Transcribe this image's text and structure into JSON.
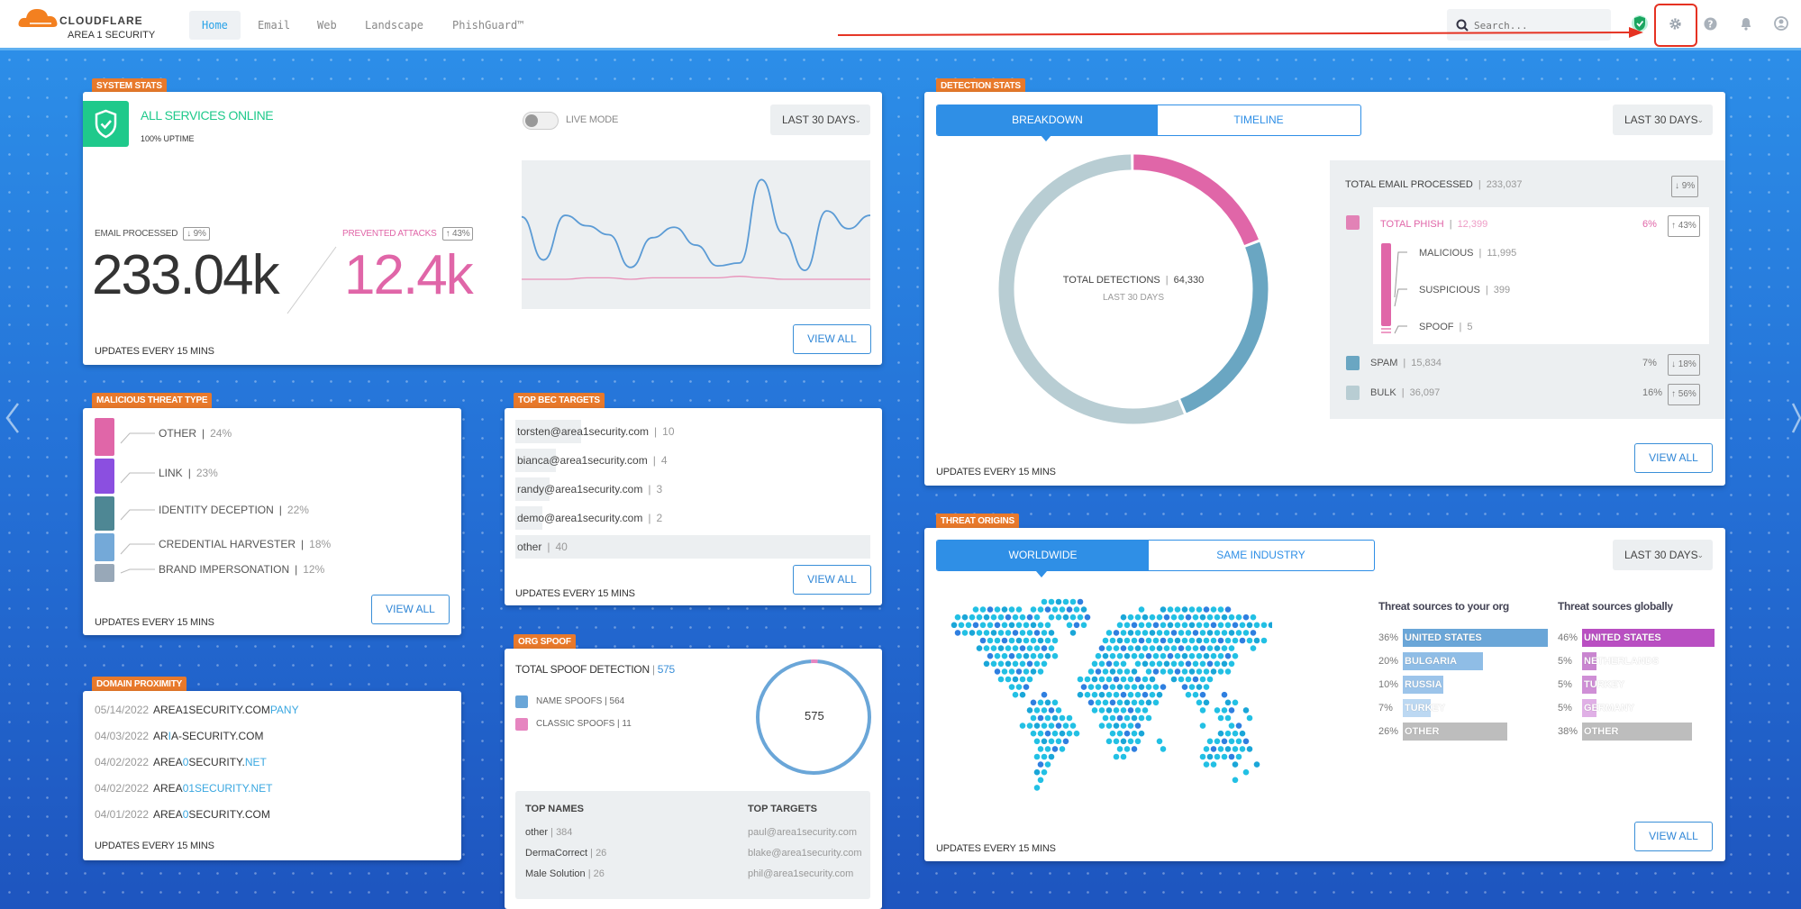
{
  "header": {
    "brand": "CLOUDFLARE",
    "product": "AREA 1 SECURITY",
    "tabs": [
      {
        "label": "Home",
        "active": true
      },
      {
        "label": "Email"
      },
      {
        "label": "Web"
      },
      {
        "label": "Landscape"
      },
      {
        "label": "PhishGuard™"
      }
    ],
    "search_placeholder": "Search...",
    "icons": [
      "shield-check-icon",
      "gear-icon",
      "help-icon",
      "bell-icon",
      "user-icon"
    ]
  },
  "colors": {
    "accent": "#2f8fe6",
    "tag": "#e8792b",
    "online": "#1fc98b",
    "phish": "#e066a8",
    "spam": "#6aa6c2",
    "bulk": "#b8cdd3",
    "annotation": "#e53222"
  },
  "system_stats": {
    "tag": "SYSTEM STATS",
    "status": "ALL SERVICES ONLINE",
    "uptime": "100% UPTIME",
    "live_mode_label": "LIVE MODE",
    "live_mode_on": false,
    "range": "LAST 30 DAYS",
    "email_label": "EMAIL PROCESSED",
    "email_change": "↓ 9%",
    "email_value": "233.04k",
    "prevented_label": "PREVENTED ATTACKS",
    "prevented_change": "↑ 43%",
    "prevented_value": "12.4k",
    "updates": "UPDATES EVERY 15 MINS",
    "view_all": "VIEW ALL"
  },
  "chart_data": {
    "type": "line",
    "series": [
      {
        "color": "#5b9bd5",
        "values": [
          62,
          33,
          63,
          56,
          50,
          28,
          48,
          55,
          43,
          29,
          31,
          87,
          51,
          26,
          66,
          54,
          63
        ]
      },
      {
        "color": "#e88fb8",
        "values": [
          20,
          20,
          20,
          21,
          21,
          20,
          21,
          21,
          21,
          21,
          22,
          21,
          20,
          20,
          20,
          20,
          20
        ]
      }
    ],
    "grid": false
  },
  "malicious": {
    "tag": "MALICIOUS THREAT TYPE",
    "items": [
      {
        "label": "OTHER",
        "pct": "24%",
        "color": "#e066a8"
      },
      {
        "label": "LINK",
        "pct": "23%",
        "color": "#8b4fe0"
      },
      {
        "label": "IDENTITY DECEPTION",
        "pct": "22%",
        "color": "#4e8794"
      },
      {
        "label": "CREDENTIAL HARVESTER",
        "pct": "18%",
        "color": "#74a9d8"
      },
      {
        "label": "BRAND IMPERSONATION",
        "pct": "12%",
        "color": "#98a8b8"
      }
    ],
    "updates": "UPDATES EVERY 15 MINS",
    "view_all": "VIEW ALL"
  },
  "domain": {
    "tag": "DOMAIN PROXIMITY",
    "items": [
      {
        "date": "05/14/2022",
        "parts": [
          {
            "t": "AREA1SECURITY.COM"
          },
          {
            "t": "PANY",
            "hl": true
          }
        ]
      },
      {
        "date": "04/03/2022",
        "parts": [
          {
            "t": "AR"
          },
          {
            "t": "I",
            "hl": true
          },
          {
            "t": "A-SECURITY.COM"
          }
        ]
      },
      {
        "date": "04/02/2022",
        "parts": [
          {
            "t": "AREA"
          },
          {
            "t": "0",
            "hl": true
          },
          {
            "t": "SECURITY."
          },
          {
            "t": "NET",
            "hl": true
          }
        ]
      },
      {
        "date": "04/02/2022",
        "parts": [
          {
            "t": "AREA"
          },
          {
            "t": "01SECURITY.NET",
            "hl": true
          }
        ]
      },
      {
        "date": "04/01/2022",
        "parts": [
          {
            "t": "AREA"
          },
          {
            "t": "0",
            "hl": true
          },
          {
            "t": "SECURITY.COM"
          }
        ]
      }
    ],
    "updates": "UPDATES EVERY 15 MINS"
  },
  "bec": {
    "tag": "TOP BEC TARGETS",
    "items": [
      {
        "email": "torsten@area1security.com",
        "count": 10
      },
      {
        "email": "bianca@area1security.com",
        "count": 4
      },
      {
        "email": "randy@area1security.com",
        "count": 3
      },
      {
        "email": "demo@area1security.com",
        "count": 2
      },
      {
        "email": "other",
        "count": 40
      }
    ],
    "updates": "UPDATES EVERY 15 MINS",
    "view_all": "VIEW ALL"
  },
  "spoof": {
    "tag": "ORG SPOOF",
    "title": "TOTAL SPOOF DETECTION",
    "total": "575",
    "legend": [
      {
        "label": "NAME SPOOFS",
        "value": 564,
        "color": "#6aa6d8"
      },
      {
        "label": "CLASSIC SPOOFS",
        "value": 11,
        "color": "#e685c0"
      }
    ],
    "top_names_title": "TOP NAMES",
    "top_names": [
      {
        "name": "other",
        "count": "384"
      },
      {
        "name": "DermaCorrect",
        "count": "26"
      },
      {
        "name": "Male Solution",
        "count": "26"
      }
    ],
    "top_targets_title": "TOP TARGETS",
    "top_targets": [
      "paul@area1security.com",
      "blake@area1security.com",
      "phil@area1security.com"
    ]
  },
  "detection": {
    "tag": "DETECTION STATS",
    "tabs": [
      "BREAKDOWN",
      "TIMELINE"
    ],
    "active_tab": 0,
    "range": "LAST 30 DAYS",
    "center_label": "TOTAL DETECTIONS",
    "center_value": "64,330",
    "center_sub": "LAST 30 DAYS",
    "total_label": "TOTAL EMAIL PROCESSED",
    "total_value": "233,037",
    "total_change": "↓ 9%",
    "phish": {
      "label": "TOTAL PHISH",
      "value": "12,399",
      "pct": "6%",
      "change": "↑ 43%",
      "amount": 12399
    },
    "phish_sub": [
      {
        "label": "MALICIOUS",
        "value": "11,995"
      },
      {
        "label": "SUSPICIOUS",
        "value": "399"
      },
      {
        "label": "SPOOF",
        "value": "5"
      }
    ],
    "spam": {
      "label": "SPAM",
      "value": "15,834",
      "pct": "7%",
      "change": "↓ 18%",
      "amount": 15834
    },
    "bulk": {
      "label": "BULK",
      "value": "36,097",
      "pct": "16%",
      "change": "↑ 56%",
      "amount": 36097
    },
    "updates": "UPDATES EVERY 15 MINS",
    "view_all": "VIEW ALL"
  },
  "origins": {
    "tag": "THREAT ORIGINS",
    "tabs": [
      "WORLDWIDE",
      "SAME INDUSTRY"
    ],
    "active_tab": 0,
    "range": "LAST 30 DAYS",
    "org_title": "Threat sources to your org",
    "org": [
      {
        "pct": "36%",
        "v": 36,
        "label": "UNITED STATES",
        "color": "#6aa6d8"
      },
      {
        "pct": "20%",
        "v": 20,
        "label": "BULGARIA",
        "color": "#8fbde6"
      },
      {
        "pct": "10%",
        "v": 10,
        "label": "RUSSIA",
        "color": "#9cc4ea"
      },
      {
        "pct": "7%",
        "v": 7,
        "label": "TURKEY",
        "color": "#bcd8f2"
      },
      {
        "pct": "26%",
        "v": 26,
        "label": "OTHER",
        "color": "#bdbdbd"
      }
    ],
    "global_title": "Threat sources globally",
    "global": [
      {
        "pct": "46%",
        "v": 46,
        "label": "UNITED STATES",
        "color": "#b94fc2"
      },
      {
        "pct": "5%",
        "v": 5,
        "label": "NETHERLANDS",
        "color": "#c985d0"
      },
      {
        "pct": "5%",
        "v": 5,
        "label": "TURKEY",
        "color": "#cf8fd6"
      },
      {
        "pct": "5%",
        "v": 5,
        "label": "GERMANY",
        "color": "#e0b0e6"
      },
      {
        "pct": "38%",
        "v": 38,
        "label": "OTHER",
        "color": "#bdbdbd"
      }
    ],
    "updates": "UPDATES EVERY 15 MINS",
    "view_all": "VIEW ALL"
  }
}
